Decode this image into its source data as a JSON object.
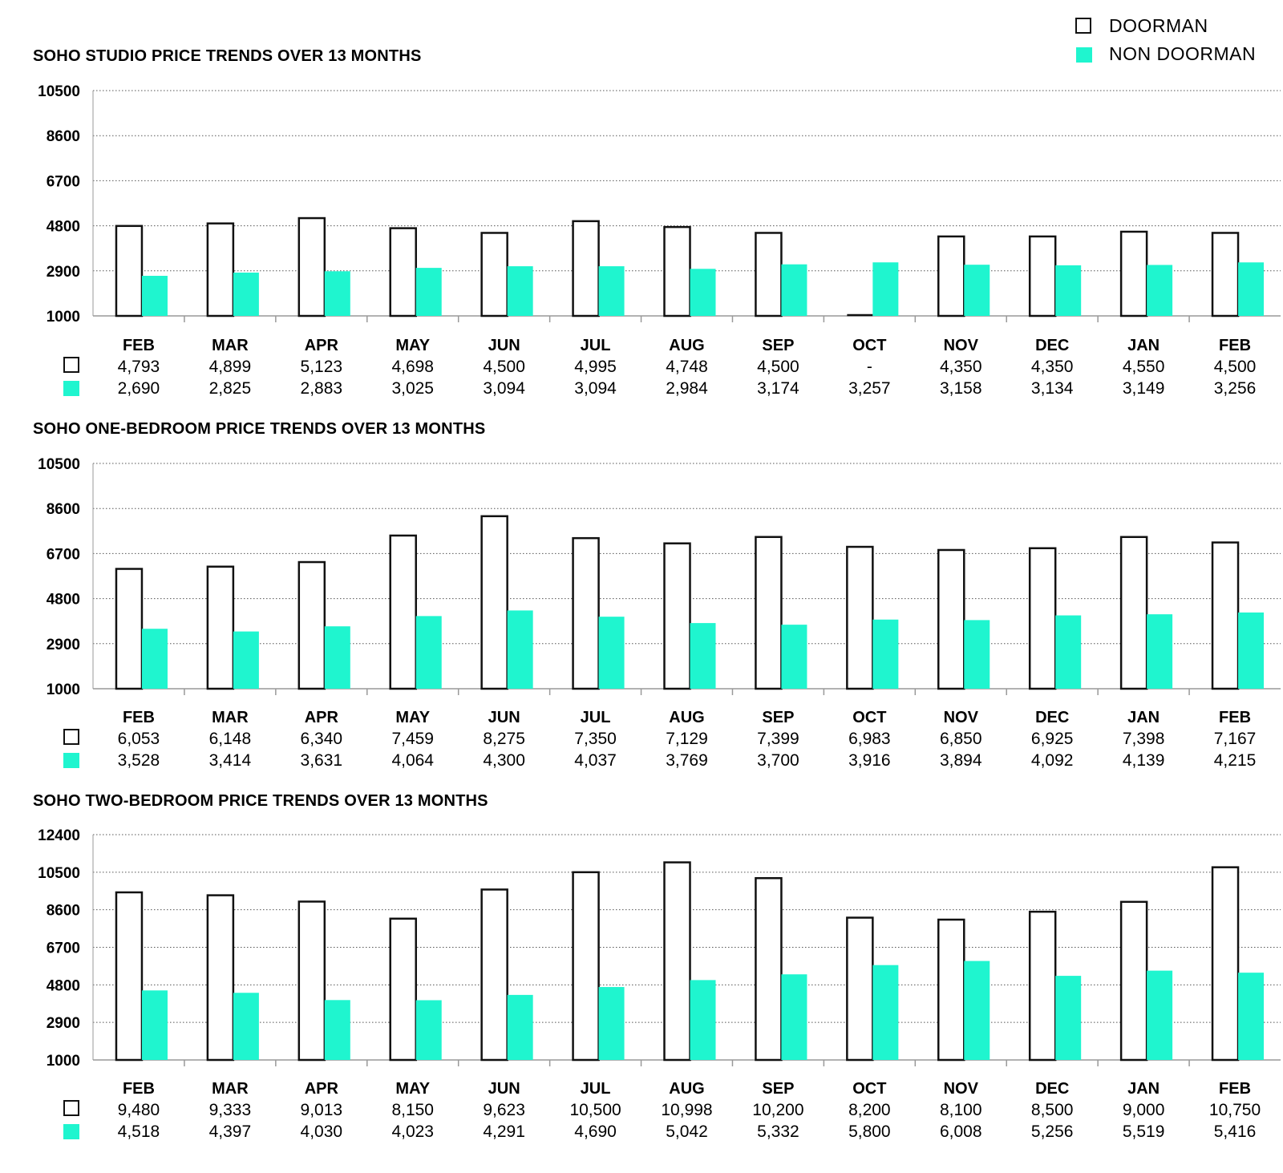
{
  "legend": {
    "doorman_label": "DOORMAN",
    "non_doorman_label": "NON DOORMAN"
  },
  "colors": {
    "doorman_fill": "#ffffff",
    "doorman_stroke": "#111111",
    "non_doorman_fill": "#1ff5cf"
  },
  "chart_data": [
    {
      "type": "bar",
      "title": "SOHO STUDIO PRICE TRENDS OVER 13 MONTHS",
      "categories": [
        "FEB",
        "MAR",
        "APR",
        "MAY",
        "JUN",
        "JUL",
        "AUG",
        "SEP",
        "OCT",
        "NOV",
        "DEC",
        "JAN",
        "FEB"
      ],
      "yticks": [
        1000,
        2900,
        4800,
        6700,
        8600,
        10500
      ],
      "ylim": [
        1000,
        10500
      ],
      "series": [
        {
          "name": "DOORMAN",
          "values": [
            4793,
            4899,
            5123,
            4698,
            4500,
            4995,
            4748,
            4500,
            null,
            4350,
            4350,
            4550,
            4500
          ],
          "labels": [
            "4,793",
            "4,899",
            "5,123",
            "4,698",
            "4,500",
            "4,995",
            "4,748",
            "4,500",
            "-",
            "4,350",
            "4,350",
            "4,550",
            "4,500"
          ]
        },
        {
          "name": "NON DOORMAN",
          "values": [
            2690,
            2825,
            2883,
            3025,
            3094,
            3094,
            2984,
            3174,
            3257,
            3158,
            3134,
            3149,
            3256
          ],
          "labels": [
            "2,690",
            "2,825",
            "2,883",
            "3,025",
            "3,094",
            "3,094",
            "2,984",
            "3,174",
            "3,257",
            "3,158",
            "3,134",
            "3,149",
            "3,256"
          ]
        }
      ]
    },
    {
      "type": "bar",
      "title": "SOHO ONE-BEDROOM PRICE TRENDS OVER 13 MONTHS",
      "categories": [
        "FEB",
        "MAR",
        "APR",
        "MAY",
        "JUN",
        "JUL",
        "AUG",
        "SEP",
        "OCT",
        "NOV",
        "DEC",
        "JAN",
        "FEB"
      ],
      "yticks": [
        1000,
        2900,
        4800,
        6700,
        8600,
        10500
      ],
      "ylim": [
        1000,
        10500
      ],
      "series": [
        {
          "name": "DOORMAN",
          "values": [
            6053,
            6148,
            6340,
            7459,
            8275,
            7350,
            7129,
            7399,
            6983,
            6850,
            6925,
            7398,
            7167
          ],
          "labels": [
            "6,053",
            "6,148",
            "6,340",
            "7,459",
            "8,275",
            "7,350",
            "7,129",
            "7,399",
            "6,983",
            "6,850",
            "6,925",
            "7,398",
            "7,167"
          ]
        },
        {
          "name": "NON DOORMAN",
          "values": [
            3528,
            3414,
            3631,
            4064,
            4300,
            4037,
            3769,
            3700,
            3916,
            3894,
            4092,
            4139,
            4215
          ],
          "labels": [
            "3,528",
            "3,414",
            "3,631",
            "4,064",
            "4,300",
            "4,037",
            "3,769",
            "3,700",
            "3,916",
            "3,894",
            "4,092",
            "4,139",
            "4,215"
          ]
        }
      ]
    },
    {
      "type": "bar",
      "title": "SOHO TWO-BEDROOM PRICE TRENDS OVER 13 MONTHS",
      "categories": [
        "FEB",
        "MAR",
        "APR",
        "MAY",
        "JUN",
        "JUL",
        "AUG",
        "SEP",
        "OCT",
        "NOV",
        "DEC",
        "JAN",
        "FEB"
      ],
      "yticks": [
        1000,
        2900,
        4800,
        6700,
        8600,
        10500,
        12400
      ],
      "ylim": [
        1000,
        12400
      ],
      "series": [
        {
          "name": "DOORMAN",
          "values": [
            9480,
            9333,
            9013,
            8150,
            9623,
            10500,
            10998,
            10200,
            8200,
            8100,
            8500,
            9000,
            10750
          ],
          "labels": [
            "9,480",
            "9,333",
            "9,013",
            "8,150",
            "9,623",
            "10,500",
            "10,998",
            "10,200",
            "8,200",
            "8,100",
            "8,500",
            "9,000",
            "10,750"
          ]
        },
        {
          "name": "NON DOORMAN",
          "values": [
            4518,
            4397,
            4030,
            4023,
            4291,
            4690,
            5042,
            5332,
            5800,
            6008,
            5256,
            5519,
            5416
          ],
          "labels": [
            "4,518",
            "4,397",
            "4,030",
            "4,023",
            "4,291",
            "4,690",
            "5,042",
            "5,332",
            "5,800",
            "6,008",
            "5,256",
            "5,519",
            "5,416"
          ]
        }
      ]
    }
  ]
}
